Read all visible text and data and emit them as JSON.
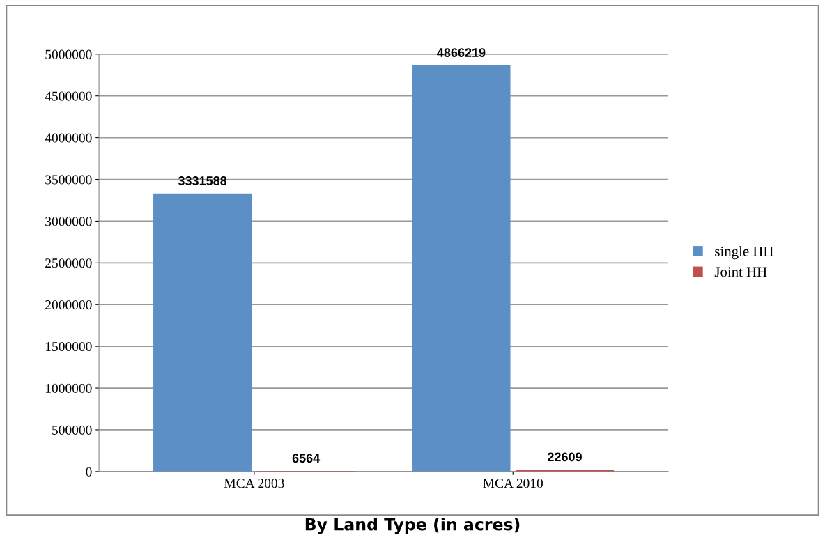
{
  "chart_data": {
    "type": "bar",
    "title": "By Land Type (in acres)",
    "categories": [
      "MCA 2003",
      "MCA 2010"
    ],
    "series": [
      {
        "name": "single HH",
        "color": "#5b8fc6",
        "values": [
          3331588,
          4866219
        ]
      },
      {
        "name": "Joint HH",
        "color": "#c0504d",
        "values": [
          6564,
          22609
        ]
      }
    ],
    "ylim": [
      0,
      5000000
    ],
    "yticks": [
      0,
      500000,
      1000000,
      1500000,
      2000000,
      2500000,
      3000000,
      3500000,
      4000000,
      4500000,
      5000000
    ],
    "grid": "y",
    "legend": "right",
    "data_labels": true
  }
}
